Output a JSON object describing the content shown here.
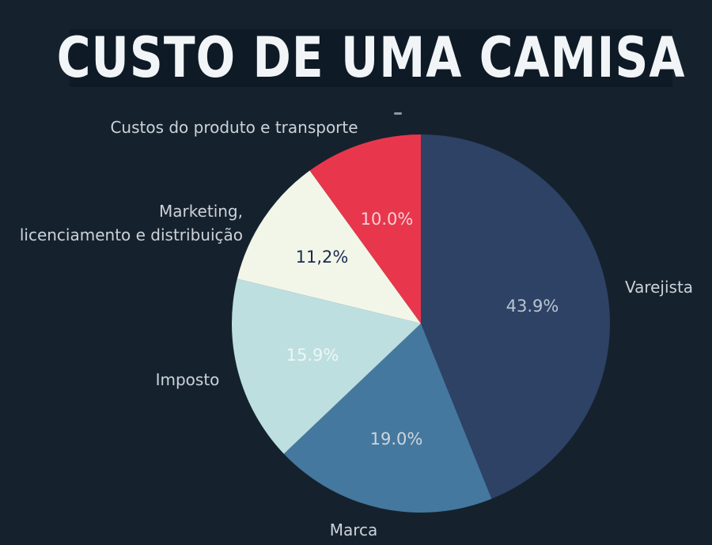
{
  "title": "CUSTO DE UMA CAMISA",
  "colors": {
    "background": "#15222e",
    "title_bar": "#0e1a25",
    "title_text": "#f2f5f7",
    "category_label_text": "#cdd2d9"
  },
  "artifact_dash": "-",
  "chart_data": {
    "type": "pie",
    "title": "CUSTO DE UMA CAMISA",
    "legend": "none",
    "start_angle": "12 o'clock, clockwise",
    "slices": [
      {
        "id": "varejista",
        "label": "Varejista",
        "value": 43.9,
        "pct_label": "43.9%",
        "color": "#2d4265",
        "pct_color": "#bac4d2"
      },
      {
        "id": "marca",
        "label": "Marca",
        "value": 19.0,
        "pct_label": "19.0%",
        "color": "#45789e",
        "pct_color": "#cdd6de"
      },
      {
        "id": "imposto",
        "label": "Imposto",
        "value": 15.9,
        "pct_label": "15.9%",
        "color": "#bddfe0",
        "pct_color": "#eef6f5"
      },
      {
        "id": "marketing",
        "label": "Marketing, licenciamento e distribuição",
        "label_lines": [
          "Marketing,",
          "licenciamento e distribuição"
        ],
        "value": 11.2,
        "pct_label": "11,2%",
        "color": "#f2f6e9",
        "pct_color": "#1b2b4d"
      },
      {
        "id": "custos",
        "label": "Custos do produto e transporte",
        "value": 10.0,
        "pct_label": "10.0%",
        "color": "#e8374c",
        "pct_color": "#f2d3d8"
      }
    ]
  }
}
